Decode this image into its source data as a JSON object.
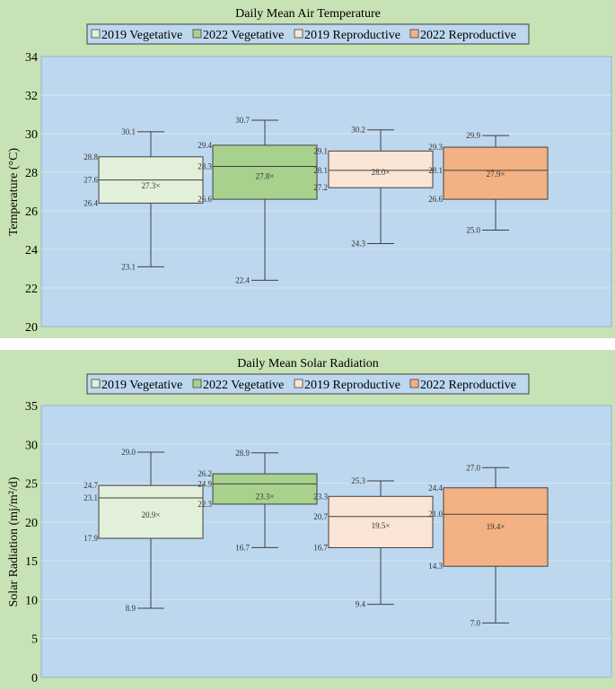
{
  "colors": {
    "outer_bg": "#c7e2b4",
    "plot_bg": "#bdd7ee",
    "grid": "#d6e4f2",
    "v2019": "#e2efd9",
    "v2022": "#a9d18e",
    "r2019": "#fbe5d6",
    "r2022": "#f4b183",
    "line": "#404040"
  },
  "legend": [
    "2019 Vegetative",
    "2022 Vegetative",
    "2019 Reproductive",
    "2022 Reproductive"
  ],
  "chart_data": [
    {
      "type": "box",
      "title": "Daily Mean Air Temperature",
      "ylabel": "Temperature (°C)",
      "ylim": [
        20,
        34
      ],
      "yticks": [
        20,
        22,
        24,
        26,
        28,
        30,
        32,
        34
      ],
      "grid": true,
      "legend_position": "top",
      "series": [
        {
          "name": "2019 Vegetative",
          "min": 23.1,
          "q1": 26.4,
          "median": 27.6,
          "q3": 28.8,
          "max": 30.1,
          "mean": 27.3,
          "labels": {
            "min": "23.1",
            "q1": "26.4",
            "median": "27.6",
            "q3": "28.8",
            "max": "30.1",
            "mean": "27.3×"
          }
        },
        {
          "name": "2022 Vegetative",
          "min": 22.4,
          "q1": 26.6,
          "median": 28.3,
          "q3": 29.4,
          "max": 30.7,
          "mean": 27.8,
          "labels": {
            "min": "22.4",
            "q1": "26.6",
            "median": "28.3",
            "q3": "29.4",
            "max": "30.7",
            "mean": "27.8×"
          }
        },
        {
          "name": "2019 Reproductive",
          "min": 24.3,
          "q1": 27.2,
          "median": 28.1,
          "q3": 29.1,
          "max": 30.2,
          "mean": 28.0,
          "labels": {
            "min": "24.3",
            "q1": "27.2",
            "median": "28.1",
            "q3": "29.1",
            "max": "30.2",
            "mean": "28.0×"
          }
        },
        {
          "name": "2022 Reproductive",
          "min": 25.0,
          "q1": 26.6,
          "median": 28.1,
          "q3": 29.3,
          "max": 29.9,
          "mean": 27.9,
          "labels": {
            "min": "25.0",
            "q1": "26.6",
            "median": "28.1",
            "q3": "29.3",
            "max": "29.9",
            "mean": "27.9×"
          }
        }
      ]
    },
    {
      "type": "box",
      "title": "Daily Mean Solar Radiation",
      "ylabel": "Solar Radiation (mj/m²/d)",
      "ylim": [
        0,
        35
      ],
      "yticks": [
        0,
        5,
        10,
        15,
        20,
        25,
        30,
        35
      ],
      "grid": true,
      "legend_position": "top",
      "series": [
        {
          "name": "2019 Vegetative",
          "min": 8.9,
          "q1": 17.9,
          "median": 23.1,
          "q3": 24.7,
          "max": 29.0,
          "mean": 20.9,
          "labels": {
            "min": "8.9",
            "q1": "17.9",
            "median": "23.1",
            "q3": "24.7",
            "max": "29.0",
            "mean": "20.9×"
          }
        },
        {
          "name": "2022 Vegetative",
          "min": 16.7,
          "q1": 22.3,
          "median": 24.9,
          "q3": 26.2,
          "max": 28.9,
          "mean": 23.3,
          "labels": {
            "min": "16.7",
            "q1": "22.3",
            "median": "24.9",
            "q3": "26.2",
            "max": "28.9",
            "mean": "23.3×"
          }
        },
        {
          "name": "2019 Reproductive",
          "min": 9.4,
          "q1": 16.7,
          "median": 20.7,
          "q3": 23.3,
          "max": 25.3,
          "mean": 19.5,
          "labels": {
            "min": "9.4",
            "q1": "16.7",
            "median": "20.7",
            "q3": "23.3",
            "max": "25.3",
            "mean": "19.5×"
          }
        },
        {
          "name": "2022 Reproductive",
          "min": 7.0,
          "q1": 14.3,
          "median": 21.0,
          "q3": 24.4,
          "max": 27.0,
          "mean": 19.4,
          "labels": {
            "min": "7.0",
            "q1": "14.3",
            "median": "21.0",
            "q3": "24.4",
            "max": "27.0",
            "mean": "19.4×"
          }
        }
      ]
    }
  ]
}
